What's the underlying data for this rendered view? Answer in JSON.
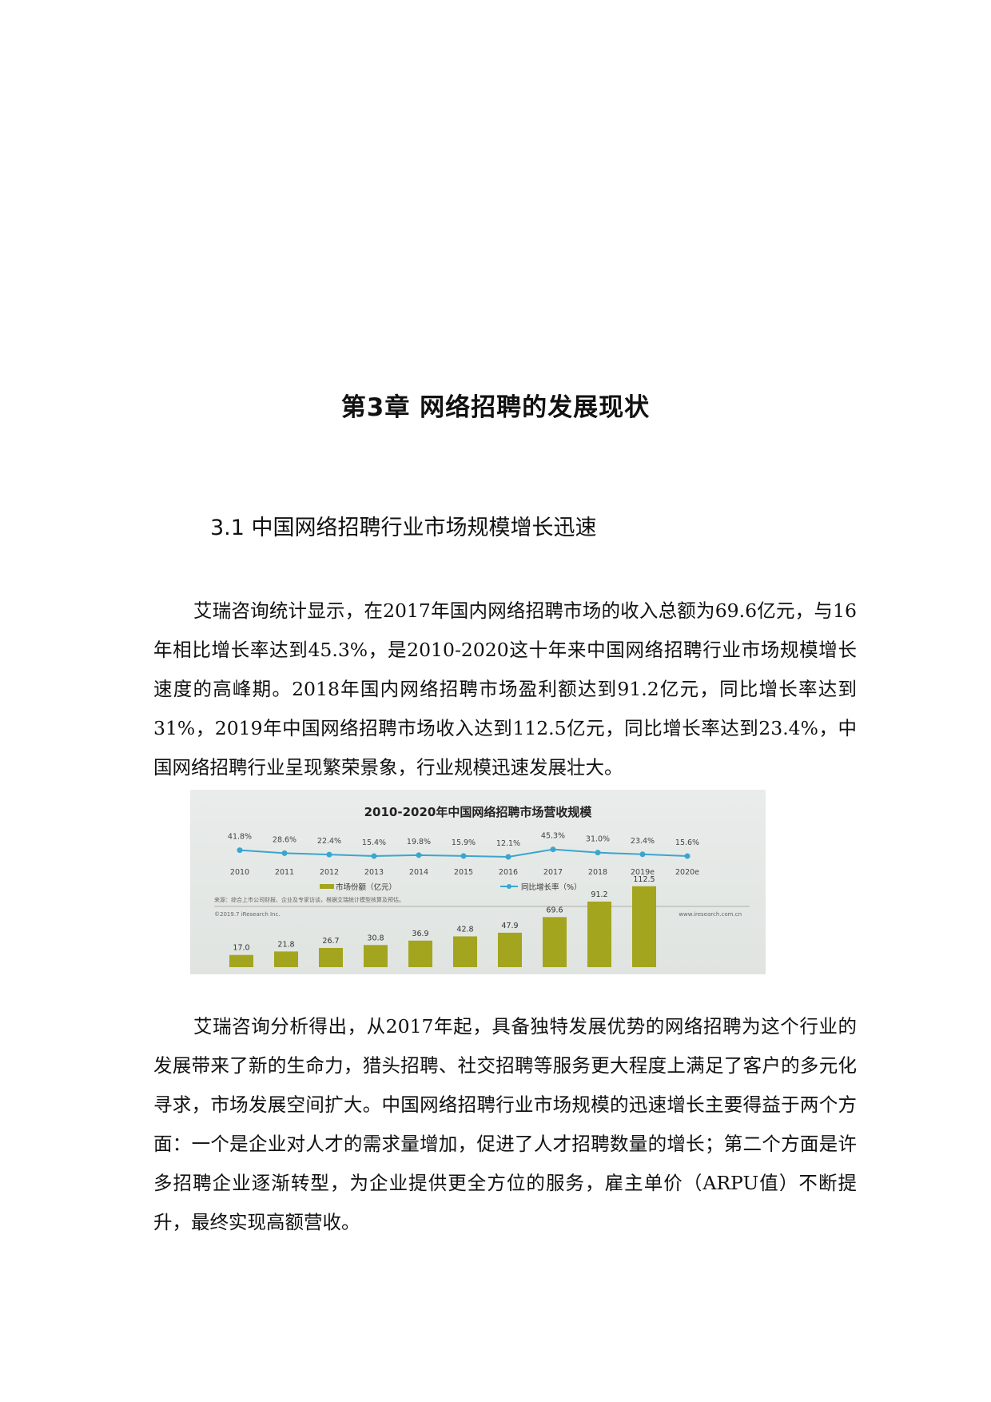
{
  "chapter_title": "第3章  网络招聘的发展现状",
  "section_title": "3.1  中国网络招聘行业市场规模增长迅速",
  "paragraphs": [
    "艾瑞咨询统计显示，在2017年国内网络招聘市场的收入总额为69.6亿元，与16年相比增长率达到45.3%，是2010-2020这十年来中国网络招聘行业市场规模增长速度的高峰期。2018年国内网络招聘市场盈利额达到91.2亿元，同比增长率达到31%，2019年中国网络招聘市场收入达到112.5亿元，同比增长率达到23.4%，中国网络招聘行业呈现繁荣景象，行业规模迅速发展壮大。",
    "艾瑞咨询分析得出，从2017年起，具备独特发展优势的网络招聘为这个行业的发展带来了新的生命力，猎头招聘、社交招聘等服务更大程度上满足了客户的多元化寻求，市场发展空间扩大。中国网络招聘行业市场规模的迅速增长主要得益于两个方面：一个是企业对人才的需求量增加，促进了人才招聘数量的增长；第二个方面是许多招聘企业逐渐转型，为企业提供更全方位的服务，雇主单价（ARPU值）不断提升，最终实现高额营收。"
  ],
  "chart_data": {
    "type": "bar+line",
    "title": "2010-2020年中国网络招聘市场营收规模",
    "categories": [
      "2010",
      "2011",
      "2012",
      "2013",
      "2014",
      "2015",
      "2016",
      "2017",
      "2018",
      "2019e",
      "2020e"
    ],
    "series": [
      {
        "name": "市场份额（亿元）",
        "type": "bar",
        "values": [
          17.0,
          21.8,
          26.7,
          30.8,
          36.9,
          42.8,
          47.9,
          69.6,
          91.2,
          112.5,
          null
        ],
        "labels": [
          "17.0",
          "21.8",
          "26.7",
          "30.8",
          "36.9",
          "42.8",
          "47.9",
          "69.6",
          "91.2",
          "112.5",
          ""
        ]
      },
      {
        "name": "同比增长率（%）",
        "type": "line",
        "values": [
          41.8,
          28.6,
          22.4,
          15.4,
          19.8,
          15.9,
          12.1,
          45.3,
          31.0,
          23.4,
          15.6
        ],
        "labels": [
          "41.8%",
          "28.6%",
          "22.4%",
          "15.4%",
          "19.8%",
          "15.9%",
          "12.1%",
          "45.3%",
          "31.0%",
          "23.4%",
          "15.6%"
        ]
      }
    ],
    "source": "来源：综合上市公司财报、企业及专家访谈，根据艾瑞统计模型核算及预估。",
    "copyright": "©2019.7 iResearch Inc.",
    "website": "www.iresearch.com.cn",
    "colors": {
      "bar": "#a3a51e",
      "line": "#3aa6cf"
    }
  }
}
